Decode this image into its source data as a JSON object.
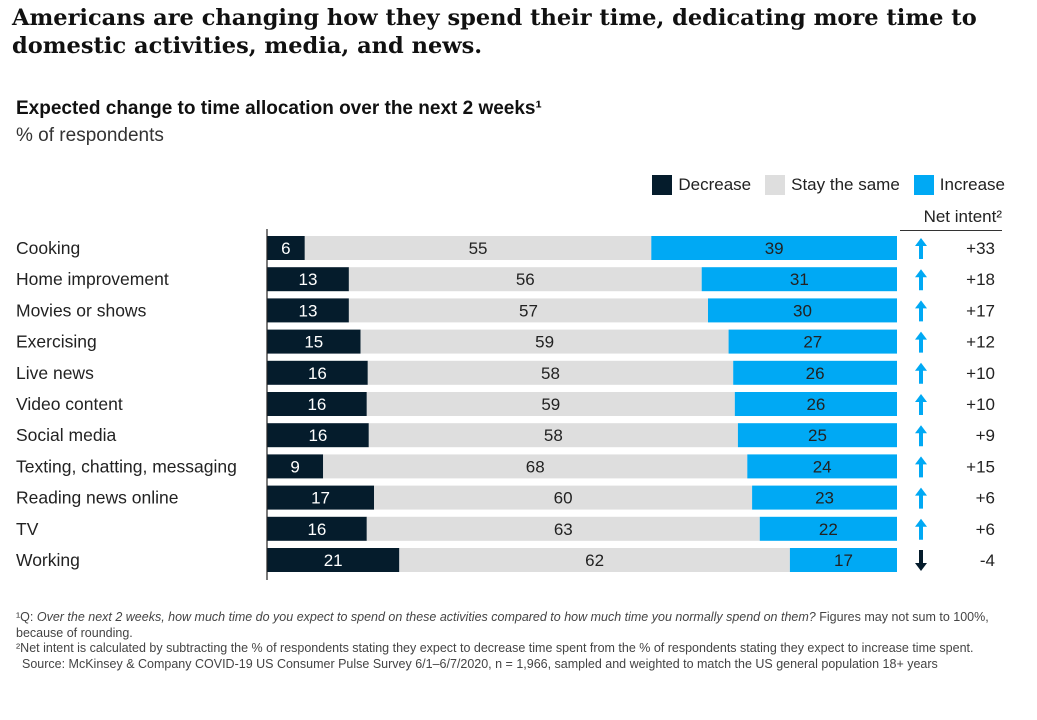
{
  "headline": "Americans are changing how they spend their time, dedicating more time to domestic activities, media, and news.",
  "chart_data": {
    "type": "bar",
    "orientation": "horizontal-stacked-100",
    "title": "Expected change to time allocation over the next 2 weeks¹",
    "subtitle": "% of respondents",
    "categories": [
      "Cooking",
      "Home improvement",
      "Movies or shows",
      "Exercising",
      "Live news",
      "Video content",
      "Social media",
      "Texting, chatting, messaging",
      "Reading news online",
      "TV",
      "Working"
    ],
    "series": [
      {
        "name": "Decrease",
        "color": "#051c2c",
        "values": [
          6,
          13,
          13,
          15,
          16,
          16,
          16,
          9,
          17,
          16,
          21
        ]
      },
      {
        "name": "Stay the same",
        "color": "#dedede",
        "values": [
          55,
          56,
          57,
          59,
          58,
          59,
          58,
          68,
          60,
          63,
          62
        ]
      },
      {
        "name": "Increase",
        "color": "#00a9f4",
        "values": [
          39,
          31,
          30,
          27,
          26,
          26,
          25,
          24,
          23,
          22,
          17
        ]
      }
    ],
    "net_intent_label": "Net intent²",
    "net_intent": [
      "+33",
      "+18",
      "+17",
      "+12",
      "+10",
      "+10",
      "+9",
      "+15",
      "+6",
      "+6",
      "-4"
    ],
    "net_direction": [
      "up",
      "up",
      "up",
      "up",
      "up",
      "up",
      "up",
      "up",
      "up",
      "up",
      "down"
    ],
    "arrow_colors": {
      "up": "#00a9f4",
      "down": "#051c2c"
    },
    "legend_position": "top-right",
    "grid": false
  },
  "footnotes": {
    "note1_marker": "¹Q: ",
    "note1_italic": "Over the next 2 weeks, how much time do you expect to spend on these activities compared to how much time you normally spend on them?",
    "note1_rest": " Figures may not sum to 100%, because of rounding.",
    "note2": "²Net intent is calculated by subtracting the % of respondents stating they expect to decrease time spent from the % of respondents stating they expect to increase time spent.",
    "source": "Source: McKinsey & Company COVID-19 US Consumer Pulse Survey 6/1–6/7/2020, n = 1,966, sampled and weighted to match the US general population 18+ years"
  }
}
